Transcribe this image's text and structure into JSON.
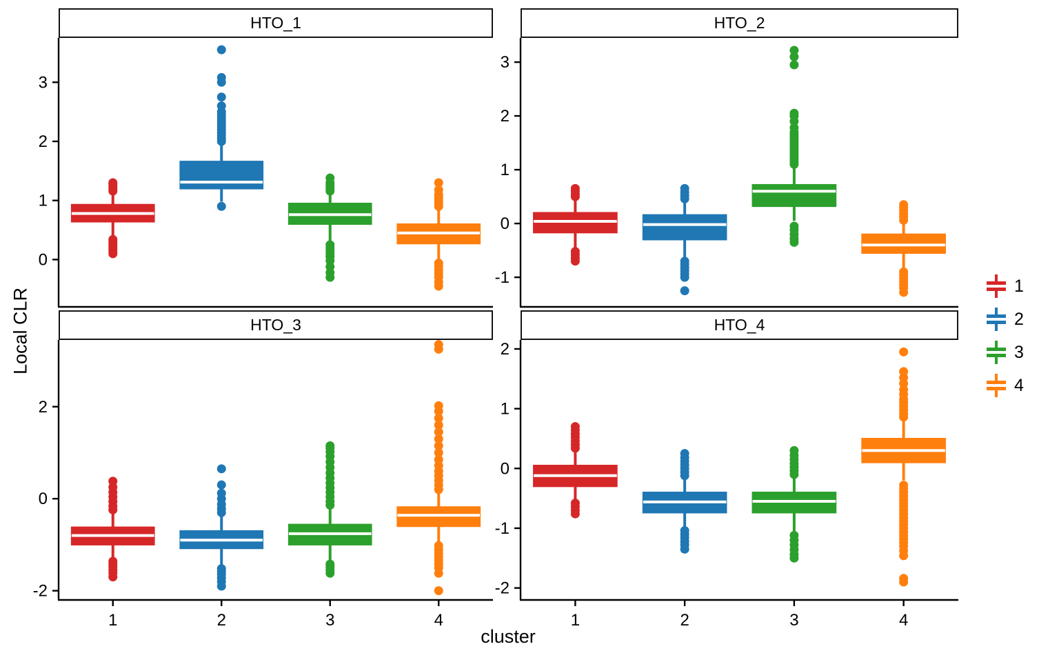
{
  "figure": {
    "ylabel": "Local CLR",
    "xlabel": "cluster"
  },
  "legend": {
    "items": [
      {
        "label": "1",
        "color": "#d62728"
      },
      {
        "label": "2",
        "color": "#1f77b4"
      },
      {
        "label": "3",
        "color": "#2ca02c"
      },
      {
        "label": "4",
        "color": "#ff7f0e"
      }
    ]
  },
  "chart_data": {
    "type": "boxplot",
    "facet_titles": [
      "HTO_1",
      "HTO_2",
      "HTO_3",
      "HTO_4"
    ],
    "categories": [
      "1",
      "2",
      "3",
      "4"
    ],
    "xlabel": "cluster",
    "ylabel": "Local CLR",
    "legend_position": "right",
    "grid": false,
    "colors": {
      "1": "#d62728",
      "2": "#1f77b4",
      "3": "#2ca02c",
      "4": "#ff7f0e"
    },
    "panels": [
      {
        "title": "HTO_1",
        "ylim": [
          -0.8,
          3.75
        ],
        "yticks": [
          0,
          1,
          2,
          3
        ],
        "boxes": [
          {
            "cluster": "1",
            "q1": 0.64,
            "median": 0.78,
            "q3": 0.93,
            "whisker_low": 0.38,
            "whisker_high": 1.12,
            "outliers": [
              0.1,
              0.14,
              0.18,
              0.22,
              0.26,
              0.3,
              0.34,
              1.16,
              1.2,
              1.24,
              1.28,
              1.3
            ]
          },
          {
            "cluster": "2",
            "q1": 1.2,
            "median": 1.31,
            "q3": 1.66,
            "whisker_low": 0.98,
            "whisker_high": 1.95,
            "outliers": [
              0.9,
              2.0,
              2.05,
              2.1,
              2.15,
              2.2,
              2.25,
              2.3,
              2.35,
              2.4,
              2.45,
              2.5,
              2.6,
              2.75,
              3.0,
              3.08,
              3.55
            ]
          },
          {
            "cluster": "3",
            "q1": 0.6,
            "median": 0.76,
            "q3": 0.95,
            "whisker_low": 0.3,
            "whisker_high": 1.12,
            "outliers": [
              -0.3,
              -0.22,
              -0.12,
              -0.02,
              0.05,
              0.1,
              0.15,
              0.2,
              0.25,
              1.16,
              1.2,
              1.25,
              1.3,
              1.38
            ]
          },
          {
            "cluster": "4",
            "q1": 0.27,
            "median": 0.45,
            "q3": 0.6,
            "whisker_low": 0.0,
            "whisker_high": 0.85,
            "outliers": [
              -0.45,
              -0.38,
              -0.3,
              -0.24,
              -0.18,
              -0.12,
              -0.06,
              0.9,
              0.95,
              1.0,
              1.05,
              1.1,
              1.18,
              1.3
            ]
          }
        ]
      },
      {
        "title": "HTO_2",
        "ylim": [
          -1.55,
          3.45
        ],
        "yticks": [
          -1,
          0,
          1,
          2,
          3
        ],
        "boxes": [
          {
            "cluster": "1",
            "q1": -0.17,
            "median": 0.04,
            "q3": 0.2,
            "whisker_low": -0.45,
            "whisker_high": 0.45,
            "outliers": [
              -0.7,
              -0.64,
              -0.58,
              -0.52,
              0.5,
              0.55,
              0.6,
              0.65
            ]
          },
          {
            "cluster": "2",
            "q1": -0.3,
            "median": -0.02,
            "q3": 0.16,
            "whisker_low": -0.62,
            "whisker_high": 0.42,
            "outliers": [
              -1.25,
              -1.0,
              -0.94,
              -0.88,
              -0.82,
              -0.76,
              -0.7,
              0.46,
              0.52,
              0.58,
              0.65
            ]
          },
          {
            "cluster": "3",
            "q1": 0.32,
            "median": 0.6,
            "q3": 0.72,
            "whisker_low": 0.05,
            "whisker_high": 1.05,
            "outliers": [
              -0.35,
              -0.28,
              -0.2,
              -0.12,
              -0.05,
              1.1,
              1.15,
              1.2,
              1.25,
              1.3,
              1.35,
              1.4,
              1.45,
              1.5,
              1.55,
              1.6,
              1.65,
              1.7,
              1.78,
              1.9,
              2.0,
              2.05,
              2.95,
              3.1,
              3.22
            ]
          },
          {
            "cluster": "4",
            "q1": -0.55,
            "median": -0.4,
            "q3": -0.2,
            "whisker_low": -0.82,
            "whisker_high": 0.02,
            "outliers": [
              -1.28,
              -1.2,
              -1.14,
              -1.08,
              -1.02,
              -0.96,
              -0.9,
              0.06,
              0.12,
              0.18,
              0.24,
              0.3,
              0.35
            ]
          }
        ]
      },
      {
        "title": "HTO_3",
        "ylim": [
          -2.2,
          3.45
        ],
        "yticks": [
          -2,
          0,
          2
        ],
        "boxes": [
          {
            "cluster": "1",
            "q1": -1.0,
            "median": -0.8,
            "q3": -0.62,
            "whisker_low": -1.32,
            "whisker_high": -0.3,
            "outliers": [
              -1.7,
              -1.62,
              -1.55,
              -1.48,
              -1.42,
              -1.36,
              -0.24,
              -0.16,
              -0.06,
              0.04,
              0.14,
              0.25,
              0.38
            ]
          },
          {
            "cluster": "2",
            "q1": -1.08,
            "median": -0.9,
            "q3": -0.7,
            "whisker_low": -1.45,
            "whisker_high": -0.35,
            "outliers": [
              -1.9,
              -1.8,
              -1.72,
              -1.64,
              -1.58,
              -1.52,
              -0.3,
              -0.22,
              -0.12,
              0.0,
              0.12,
              0.3,
              0.65
            ]
          },
          {
            "cluster": "3",
            "q1": -1.0,
            "median": -0.76,
            "q3": -0.56,
            "whisker_low": -1.35,
            "whisker_high": -0.2,
            "outliers": [
              -1.62,
              -1.55,
              -1.48,
              -1.42,
              -0.14,
              -0.06,
              0.04,
              0.14,
              0.24,
              0.34,
              0.45,
              0.56,
              0.68,
              0.8,
              0.92,
              1.02,
              1.1,
              1.15
            ]
          },
          {
            "cluster": "4",
            "q1": -0.6,
            "median": -0.36,
            "q3": -0.18,
            "whisker_low": -0.95,
            "whisker_high": 0.15,
            "outliers": [
              -2.0,
              -1.62,
              -1.5,
              -1.42,
              -1.34,
              -1.26,
              -1.18,
              -1.1,
              -1.02,
              0.2,
              0.3,
              0.4,
              0.5,
              0.6,
              0.72,
              0.85,
              1.0,
              1.15,
              1.3,
              1.45,
              1.6,
              1.75,
              1.9,
              2.02,
              3.25,
              3.35
            ]
          }
        ]
      },
      {
        "title": "HTO_4",
        "ylim": [
          -2.2,
          2.15
        ],
        "yticks": [
          -2,
          -1,
          0,
          1,
          2
        ],
        "boxes": [
          {
            "cluster": "1",
            "q1": -0.3,
            "median": -0.12,
            "q3": 0.05,
            "whisker_low": -0.56,
            "whisker_high": 0.3,
            "outliers": [
              -0.76,
              -0.7,
              -0.64,
              -0.58,
              0.34,
              0.4,
              0.46,
              0.52,
              0.58,
              0.64,
              0.7
            ]
          },
          {
            "cluster": "2",
            "q1": -0.74,
            "median": -0.56,
            "q3": -0.4,
            "whisker_low": -1.0,
            "whisker_high": -0.16,
            "outliers": [
              -1.35,
              -1.28,
              -1.22,
              -1.16,
              -1.1,
              -1.04,
              -0.12,
              -0.06,
              0.0,
              0.06,
              0.12,
              0.18,
              0.25
            ]
          },
          {
            "cluster": "3",
            "q1": -0.74,
            "median": -0.55,
            "q3": -0.4,
            "whisker_low": -1.05,
            "whisker_high": -0.14,
            "outliers": [
              -1.5,
              -1.44,
              -1.36,
              -1.28,
              -1.2,
              -1.12,
              -0.1,
              -0.04,
              0.02,
              0.08,
              0.15,
              0.22,
              0.3
            ]
          },
          {
            "cluster": "4",
            "q1": 0.1,
            "median": 0.3,
            "q3": 0.5,
            "whisker_low": -0.2,
            "whisker_high": 0.82,
            "outliers": [
              -1.9,
              -1.84,
              -1.46,
              -1.38,
              -1.3,
              -1.24,
              -1.18,
              -1.12,
              -1.06,
              -1.0,
              -0.94,
              -0.88,
              -0.82,
              -0.76,
              -0.7,
              -0.64,
              -0.58,
              -0.52,
              -0.46,
              -0.4,
              -0.34,
              -0.28,
              0.86,
              0.92,
              0.98,
              1.04,
              1.1,
              1.16,
              1.24,
              1.32,
              1.42,
              1.52,
              1.62,
              1.95
            ]
          }
        ]
      }
    ]
  }
}
